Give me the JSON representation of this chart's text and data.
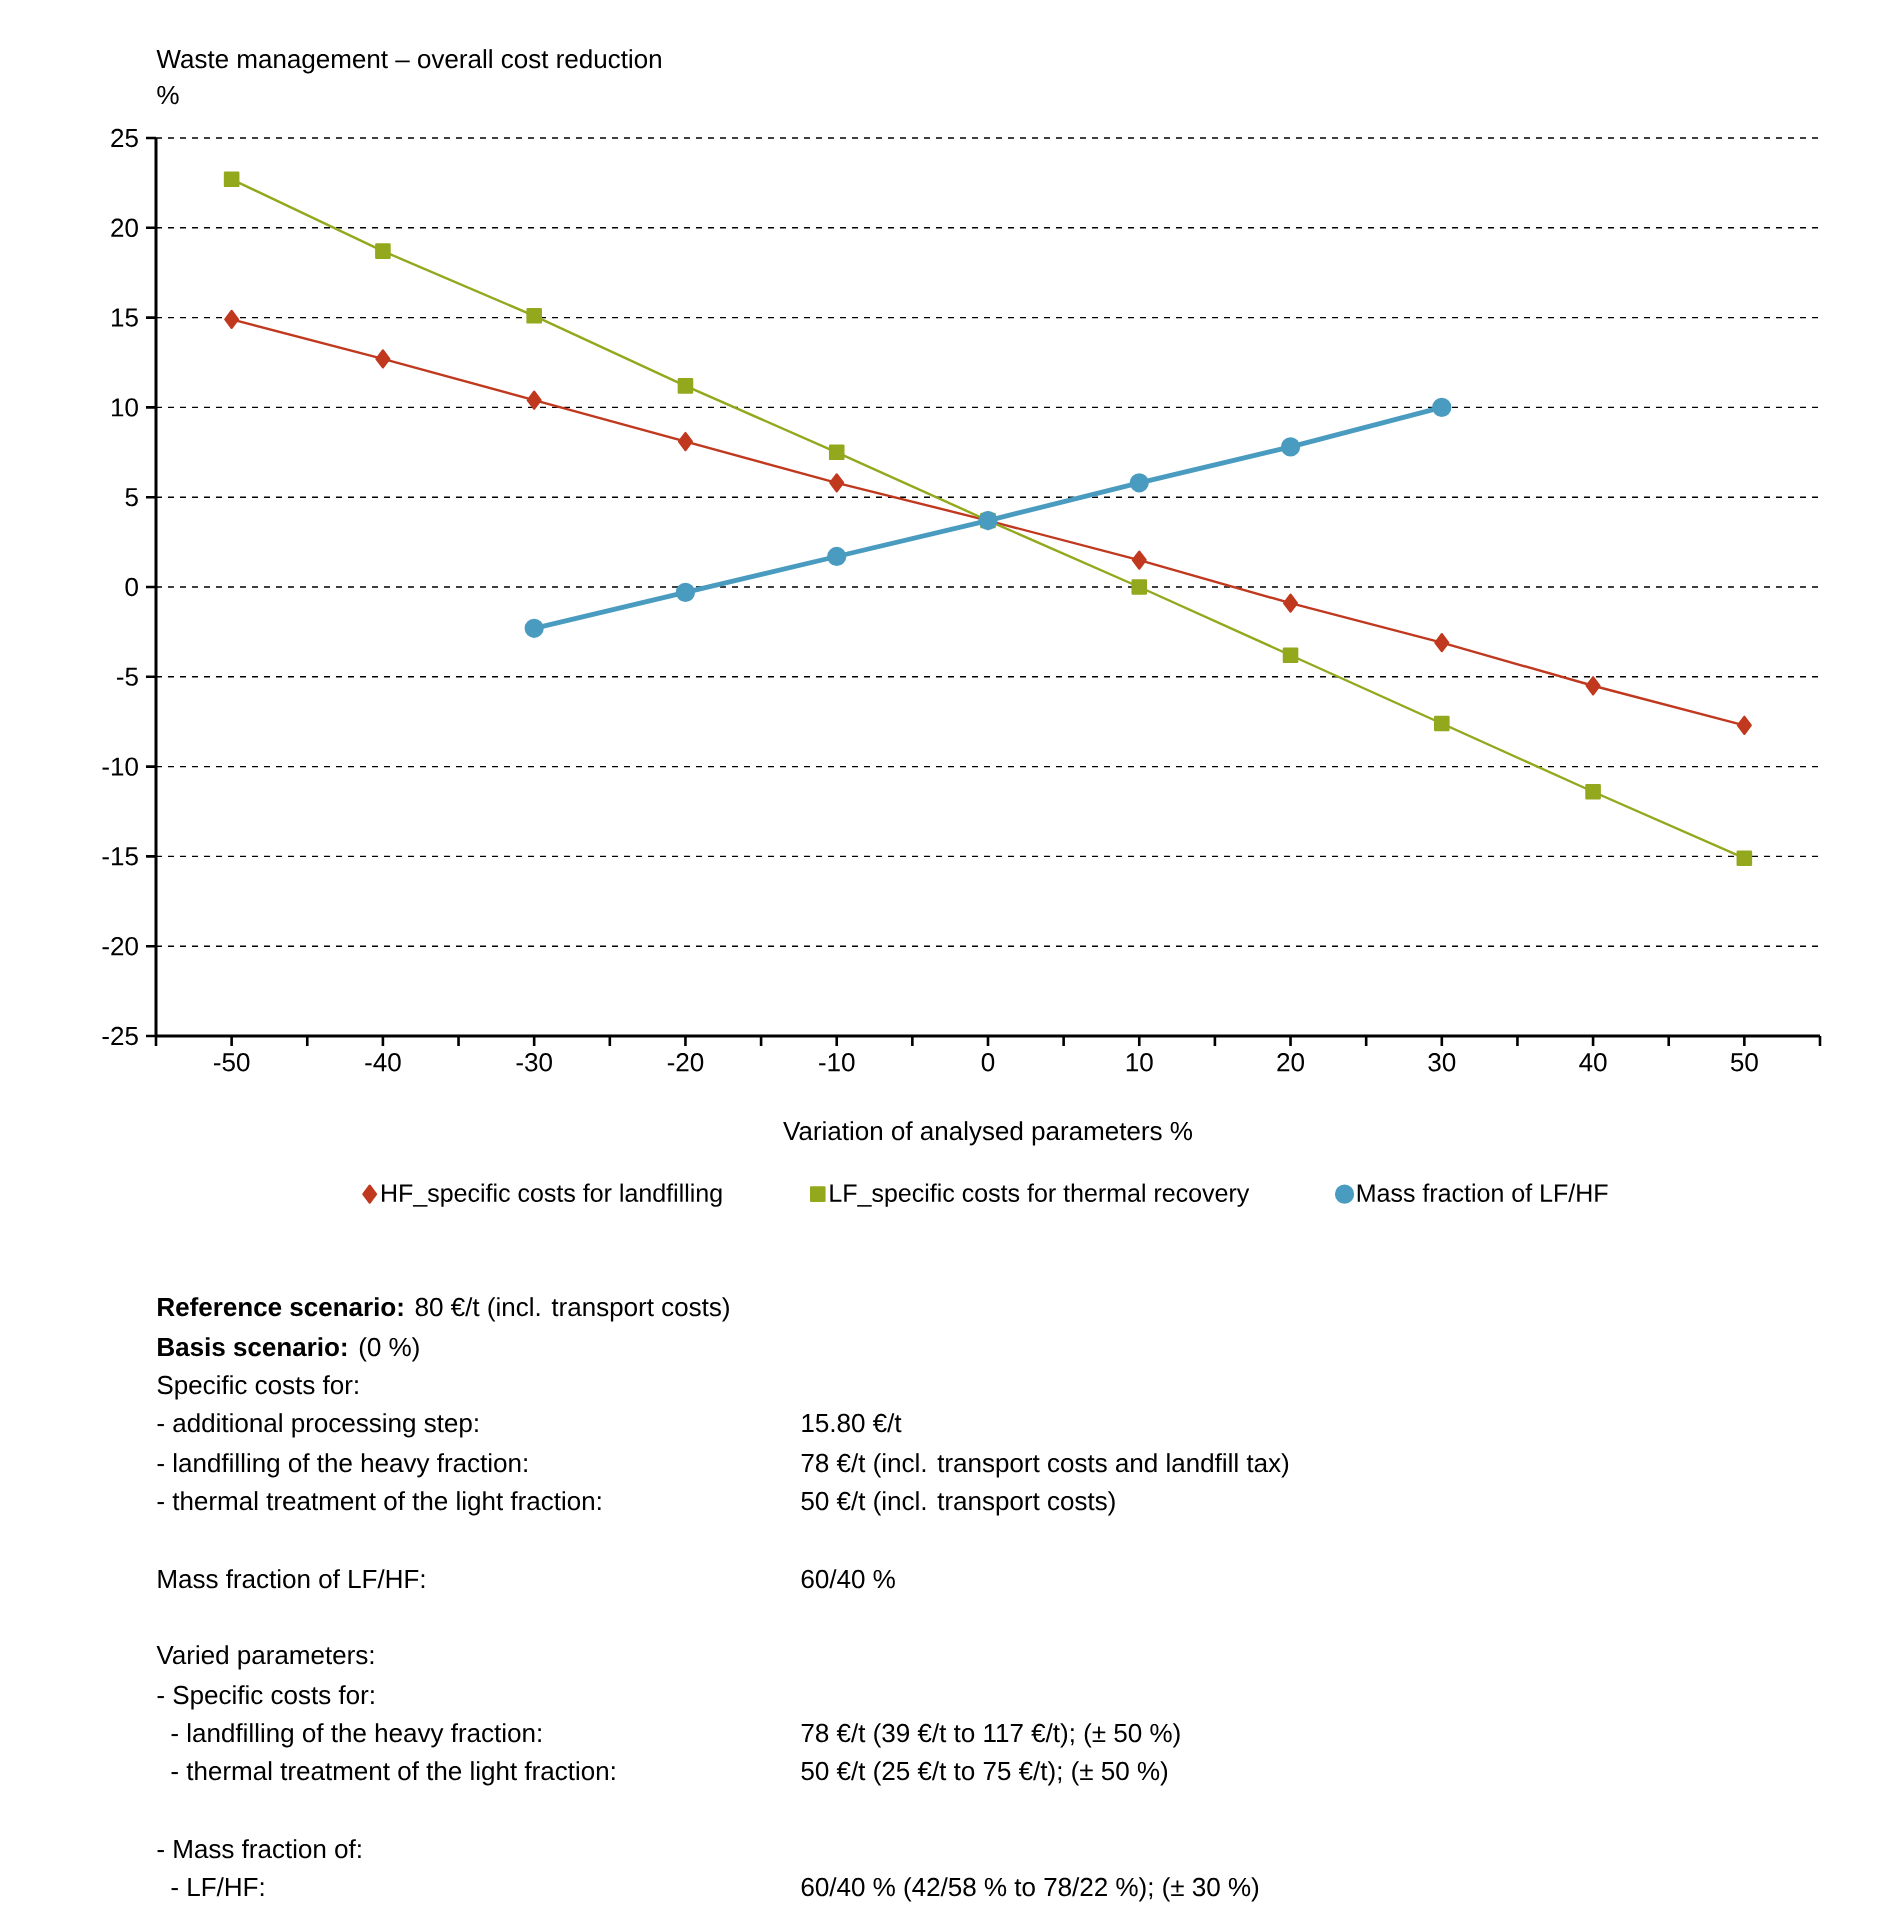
{
  "chart_data": {
    "type": "line",
    "title": "Waste management – overall cost reduction",
    "ylabel": "%",
    "xlabel": "Variation of analysed parameters %",
    "series": [
      {
        "name": "HF_specific costs for landfilling",
        "color": "#c0391f",
        "marker": "diamond",
        "x": [
          -50,
          -40,
          -30,
          -20,
          -10,
          0,
          10,
          20,
          30,
          40,
          50
        ],
        "values": [
          14.9,
          12.7,
          10.4,
          8.1,
          5.8,
          3.7,
          1.5,
          -0.9,
          -3.1,
          -5.5,
          -7.7
        ]
      },
      {
        "name": "LF_specific costs for thermal recovery",
        "color": "#93a81d",
        "marker": "square",
        "x": [
          -50,
          -40,
          -30,
          -20,
          -10,
          0,
          10,
          20,
          30,
          40,
          50
        ],
        "values": [
          22.7,
          18.7,
          15.1,
          11.2,
          7.5,
          3.7,
          0,
          -3.8,
          -7.6,
          -11.4,
          -15.1
        ]
      },
      {
        "name": "Mass fraction of LF/HF",
        "color": "#4a9bc0",
        "marker": "circle",
        "x": [
          -30,
          -20,
          -10,
          0,
          10,
          20,
          30
        ],
        "values": [
          -2.3,
          -0.3,
          1.7,
          3.7,
          5.8,
          7.8,
          10.0
        ]
      }
    ],
    "xlim": [
      -55,
      55
    ],
    "xticks": [
      {
        "value": -55,
        "label": null
      },
      -50,
      {
        "value": -45,
        "label": null
      },
      -40,
      {
        "value": -35,
        "label": null
      },
      -30,
      {
        "value": -25,
        "label": null
      },
      -20,
      {
        "value": -15,
        "label": null
      },
      -10,
      {
        "value": -5,
        "label": null
      },
      0,
      {
        "value": 5,
        "label": null
      },
      10,
      {
        "value": 15,
        "label": null
      },
      20,
      {
        "value": 25,
        "label": null
      },
      30,
      {
        "value": 35,
        "label": null
      },
      40,
      {
        "value": 45,
        "label": null
      },
      50,
      {
        "value": 55,
        "label": null
      }
    ],
    "ylim": [
      -25,
      25
    ],
    "yticks": [
      -25,
      -20,
      -15,
      -10,
      -5,
      0,
      5,
      10,
      15,
      20,
      25
    ],
    "grid": "y",
    "legend": "bottom",
    "line_style": "solid",
    "annotations": [
      "**Reference scenario:** 80 €/t (incl. transport costs)",
      "**Basis scenario:** (0 %)",
      "Specific costs for:",
      "- additional processing step:",
      "15.80 €/t",
      "- landfilling of the heavy fraction:",
      "78 €/t (incl. transport costs and landfill tax)",
      "- thermal treatment of the light fraction:",
      "50 €/t (incl. transport costs)",
      "Mass fraction of LF/HF:",
      "60/40 %",
      "Varied parameters:",
      "- Specific costs for:",
      "- landfilling of the heavy fraction:",
      "78 €/t (39 €/t to 117 €/t); (± 50 %)",
      "- thermal treatment of the light fraction:",
      "50 €/t (25 €/t to 75 €/t); (± 50 %)",
      "- Mass fraction of:",
      "- LF/HF:",
      "60/40 % (42/58 % to 78/22 %); (± 30 %)"
    ]
  }
}
